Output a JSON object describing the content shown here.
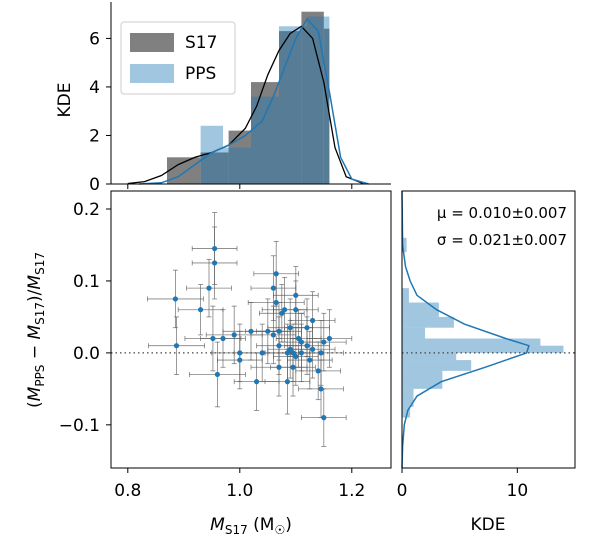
{
  "chart_data": [
    {
      "type": "histogram",
      "panel": "top-marginal",
      "ylabel": "KDE",
      "xlim": [
        0.77,
        1.27
      ],
      "ylim": [
        0,
        7.5
      ],
      "yticks": [
        "0",
        "2",
        "4",
        "6"
      ],
      "legend": {
        "placement": "top-left",
        "entries": [
          "S17",
          "PPS"
        ]
      },
      "series": [
        {
          "name": "S17",
          "color": "#808080",
          "bins": [
            [
              0.87,
              0.93,
              1.1
            ],
            [
              0.93,
              0.98,
              1.3
            ],
            [
              0.98,
              1.02,
              2.2
            ],
            [
              1.02,
              1.07,
              4.2
            ],
            [
              1.07,
              1.11,
              6.3
            ],
            [
              1.11,
              1.15,
              7.1
            ],
            [
              1.15,
              1.16,
              6.4
            ]
          ],
          "kde": [
            [
              0.8,
              0.02
            ],
            [
              0.83,
              0.1
            ],
            [
              0.86,
              0.35
            ],
            [
              0.89,
              0.8
            ],
            [
              0.92,
              1.1
            ],
            [
              0.95,
              1.3
            ],
            [
              0.98,
              1.6
            ],
            [
              1.01,
              2.3
            ],
            [
              1.03,
              3.2
            ],
            [
              1.05,
              4.5
            ],
            [
              1.07,
              5.5
            ],
            [
              1.09,
              6.2
            ],
            [
              1.11,
              6.5
            ],
            [
              1.13,
              6.0
            ],
            [
              1.15,
              4.2
            ],
            [
              1.17,
              1.5
            ],
            [
              1.19,
              0.3
            ],
            [
              1.22,
              0.02
            ]
          ]
        },
        {
          "name": "PPS",
          "color": "#1f77b4",
          "bins": [
            [
              0.93,
              0.97,
              2.4
            ],
            [
              0.97,
              1.02,
              1.5
            ],
            [
              1.02,
              1.07,
              3.6
            ],
            [
              1.07,
              1.12,
              6.5
            ],
            [
              1.12,
              1.16,
              6.9
            ]
          ],
          "kde": [
            [
              0.82,
              0.0
            ],
            [
              0.86,
              0.05
            ],
            [
              0.89,
              0.3
            ],
            [
              0.92,
              0.8
            ],
            [
              0.95,
              1.3
            ],
            [
              0.98,
              1.6
            ],
            [
              1.01,
              2.0
            ],
            [
              1.04,
              2.6
            ],
            [
              1.06,
              3.6
            ],
            [
              1.08,
              4.8
            ],
            [
              1.1,
              6.0
            ],
            [
              1.12,
              6.8
            ],
            [
              1.14,
              6.3
            ],
            [
              1.16,
              3.8
            ],
            [
              1.18,
              1.1
            ],
            [
              1.2,
              0.2
            ],
            [
              1.23,
              0.0
            ]
          ]
        }
      ]
    },
    {
      "type": "scatter",
      "panel": "main",
      "xlabel": "M_S17 (M☉)",
      "ylabel": "(M_PPS − M_S17)/M_S17",
      "xlim": [
        0.77,
        1.27
      ],
      "ylim": [
        -0.16,
        0.225
      ],
      "xticks": [
        "0.8",
        "1.0",
        "1.2"
      ],
      "yticks": [
        "0.2",
        "0.1",
        "0.0",
        "−0.1"
      ],
      "reference_line_y": 0.0,
      "color": "#1f77b4",
      "points": [
        [
          0.885,
          0.075,
          0.05,
          0.04
        ],
        [
          0.887,
          0.01,
          0.05,
          0.04
        ],
        [
          0.93,
          0.06,
          0.04,
          0.035
        ],
        [
          0.945,
          0.09,
          0.04,
          0.04
        ],
        [
          0.955,
          0.145,
          0.04,
          0.05
        ],
        [
          0.955,
          0.125,
          0.04,
          0.05
        ],
        [
          0.952,
          0.02,
          0.05,
          0.045
        ],
        [
          0.96,
          -0.03,
          0.05,
          0.045
        ],
        [
          0.97,
          0.02,
          0.04,
          0.04
        ],
        [
          0.99,
          0.025,
          0.05,
          0.04
        ],
        [
          1.0,
          0.0,
          0.05,
          0.04
        ],
        [
          1.0,
          -0.01,
          0.04,
          0.04
        ],
        [
          1.02,
          0.03,
          0.05,
          0.04
        ],
        [
          1.03,
          -0.04,
          0.04,
          0.04
        ],
        [
          1.04,
          0.0,
          0.05,
          0.04
        ],
        [
          1.05,
          0.03,
          0.04,
          0.045
        ],
        [
          1.06,
          0.09,
          0.04,
          0.045
        ],
        [
          1.065,
          0.11,
          0.04,
          0.045
        ],
        [
          1.065,
          0.07,
          0.05,
          0.04
        ],
        [
          1.07,
          0.03,
          0.04,
          0.04
        ],
        [
          1.07,
          0.01,
          0.04,
          0.04
        ],
        [
          1.07,
          -0.02,
          0.05,
          0.04
        ],
        [
          1.08,
          0.06,
          0.04,
          0.045
        ],
        [
          1.085,
          0.0,
          0.04,
          0.04
        ],
        [
          1.085,
          -0.04,
          0.04,
          0.045
        ],
        [
          1.09,
          0.035,
          0.04,
          0.04
        ],
        [
          1.095,
          0.0,
          0.05,
          0.04
        ],
        [
          1.095,
          -0.02,
          0.04,
          0.04
        ],
        [
          1.1,
          0.08,
          0.04,
          0.04
        ],
        [
          1.1,
          0.06,
          0.04,
          0.04
        ],
        [
          1.105,
          0.02,
          0.04,
          0.04
        ],
        [
          1.11,
          0.015,
          0.04,
          0.04
        ],
        [
          1.11,
          0.0,
          0.04,
          0.04
        ],
        [
          1.12,
          0.035,
          0.04,
          0.04
        ],
        [
          1.12,
          0.01,
          0.04,
          0.04
        ],
        [
          1.125,
          -0.01,
          0.04,
          0.04
        ],
        [
          1.13,
          0.045,
          0.04,
          0.04
        ],
        [
          1.13,
          0.005,
          0.04,
          0.04
        ],
        [
          1.14,
          -0.025,
          0.04,
          0.04
        ],
        [
          1.145,
          0.0,
          0.04,
          0.045
        ],
        [
          1.145,
          -0.05,
          0.04,
          0.04
        ],
        [
          1.15,
          0.015,
          0.04,
          0.04
        ],
        [
          1.15,
          -0.09,
          0.04,
          0.04
        ],
        [
          1.16,
          0.02,
          0.04,
          0.04
        ],
        [
          1.09,
          0.005,
          0.04,
          0.04
        ],
        [
          1.1,
          -0.005,
          0.04,
          0.04
        ],
        [
          1.075,
          0.055,
          0.04,
          0.04
        ],
        [
          1.06,
          0.025,
          0.04,
          0.04
        ]
      ]
    },
    {
      "type": "histogram",
      "panel": "right-marginal",
      "xlabel": "KDE",
      "xlim": [
        0,
        15
      ],
      "ylim": [
        -0.16,
        0.225
      ],
      "xticks": [
        "0",
        "10"
      ],
      "color": "#1f77b4",
      "bins": [
        [
          0.14,
          0.16,
          0.4
        ],
        [
          0.07,
          0.09,
          0.6
        ],
        [
          0.05,
          0.07,
          3.2
        ],
        [
          0.035,
          0.05,
          4.5
        ],
        [
          0.02,
          0.035,
          2.0
        ],
        [
          0.01,
          0.02,
          12.0
        ],
        [
          0.0,
          0.01,
          14.0
        ],
        [
          -0.01,
          0.0,
          4.7
        ],
        [
          -0.025,
          -0.01,
          6.0
        ],
        [
          -0.05,
          -0.025,
          3.5
        ],
        [
          -0.075,
          -0.05,
          1.0
        ],
        [
          -0.09,
          -0.075,
          0.7
        ]
      ],
      "kde": [
        [
          0.225,
          0.0
        ],
        [
          0.15,
          0.05
        ],
        [
          0.12,
          0.3
        ],
        [
          0.1,
          0.7
        ],
        [
          0.08,
          1.3
        ],
        [
          0.06,
          3.0
        ],
        [
          0.04,
          5.4
        ],
        [
          0.02,
          9.0
        ],
        [
          0.01,
          11.0
        ],
        [
          0.0,
          10.8
        ],
        [
          -0.02,
          7.2
        ],
        [
          -0.04,
          3.4
        ],
        [
          -0.06,
          1.3
        ],
        [
          -0.08,
          0.5
        ],
        [
          -0.1,
          0.2
        ],
        [
          -0.13,
          0.05
        ],
        [
          -0.16,
          0.0
        ]
      ],
      "annotations": [
        "μ = 0.010±0.007",
        "σ = 0.021±0.007"
      ]
    }
  ]
}
